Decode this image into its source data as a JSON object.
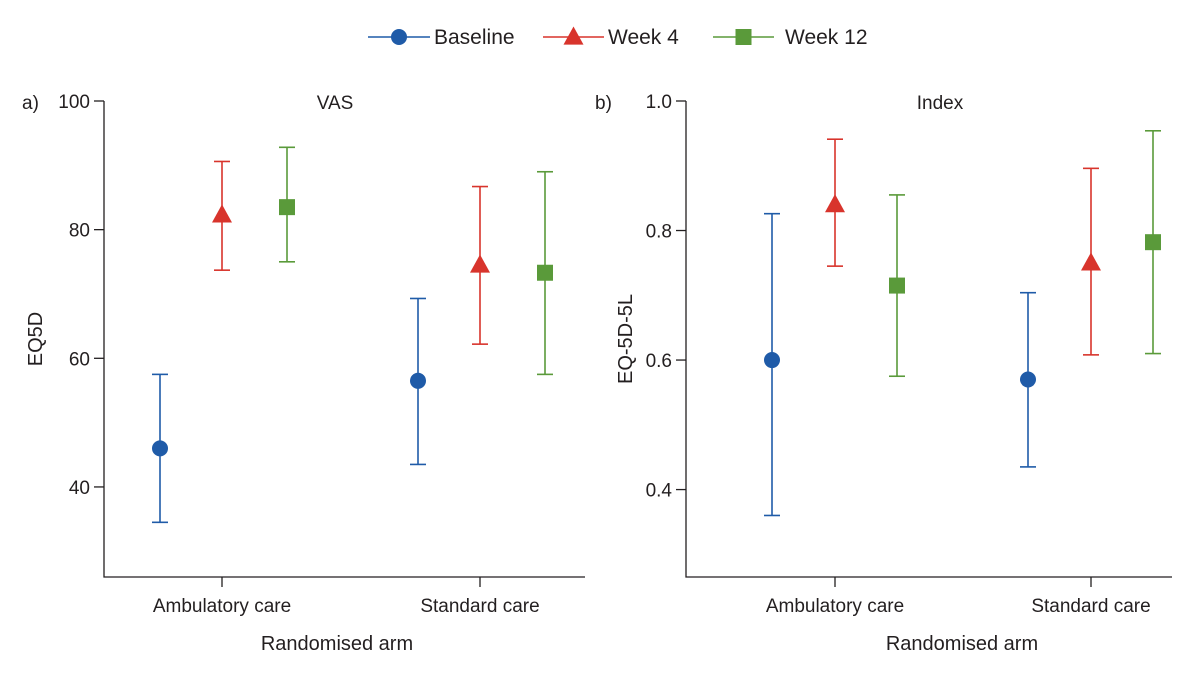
{
  "legend": {
    "items": [
      {
        "label": "Baseline",
        "color": "#1f5ba8",
        "marker": "circle"
      },
      {
        "label": "Week 4",
        "color": "#d8342c",
        "marker": "triangle"
      },
      {
        "label": "Week 12",
        "color": "#5a9a3a",
        "marker": "square"
      }
    ]
  },
  "chart_data": [
    {
      "type": "scatter",
      "panel_label": "a)",
      "title": "VAS",
      "xlabel": "Randomised arm",
      "ylabel": "EQ5D",
      "categories": [
        "Ambulatory care",
        "Standard care"
      ],
      "ylim": [
        26,
        100
      ],
      "yticks": [
        40,
        60,
        80,
        100
      ],
      "ytick_labels": [
        "40",
        "60",
        "80",
        "100"
      ],
      "grid": false,
      "series": [
        {
          "name": "Baseline",
          "color": "#1f5ba8",
          "marker": "circle",
          "values": [
            46,
            56.5
          ],
          "lower": [
            34.5,
            43.5
          ],
          "upper": [
            57.5,
            69.3
          ]
        },
        {
          "name": "Week 4",
          "color": "#d8342c",
          "marker": "triangle",
          "values": [
            82.3,
            74.5
          ],
          "lower": [
            73.7,
            62.2
          ],
          "upper": [
            90.6,
            86.7
          ]
        },
        {
          "name": "Week 12",
          "color": "#5a9a3a",
          "marker": "square",
          "values": [
            83.5,
            73.3
          ],
          "lower": [
            75,
            57.5
          ],
          "upper": [
            92.8,
            89
          ]
        }
      ]
    },
    {
      "type": "scatter",
      "panel_label": "b)",
      "title": "Index",
      "xlabel": "Randomised arm",
      "ylabel": "EQ-5D-5L",
      "categories": [
        "Ambulatory care",
        "Standard care"
      ],
      "ylim": [
        0.265,
        1.0
      ],
      "yticks": [
        0.4,
        0.6,
        0.8,
        1.0
      ],
      "ytick_labels": [
        "0.4",
        "0.6",
        "0.8",
        "1.0"
      ],
      "grid": false,
      "series": [
        {
          "name": "Baseline",
          "color": "#1f5ba8",
          "marker": "circle",
          "values": [
            0.6,
            0.57
          ],
          "lower": [
            0.36,
            0.435
          ],
          "upper": [
            0.826,
            0.704
          ]
        },
        {
          "name": "Week 4",
          "color": "#d8342c",
          "marker": "triangle",
          "values": [
            0.84,
            0.75
          ],
          "lower": [
            0.745,
            0.608
          ],
          "upper": [
            0.941,
            0.896
          ]
        },
        {
          "name": "Week 12",
          "color": "#5a9a3a",
          "marker": "square",
          "values": [
            0.715,
            0.782
          ],
          "lower": [
            0.575,
            0.61
          ],
          "upper": [
            0.855,
            0.954
          ]
        }
      ]
    }
  ]
}
